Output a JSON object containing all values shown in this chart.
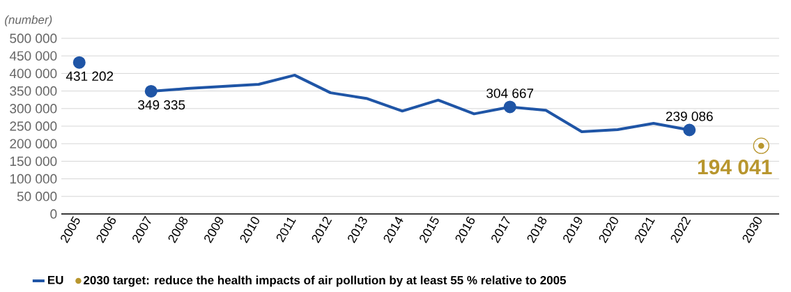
{
  "chart_data": {
    "type": "line",
    "ylabel": "(number)",
    "categories": [
      "2005",
      "2006",
      "2007",
      "2008",
      "2009",
      "2010",
      "2011",
      "2012",
      "2013",
      "2014",
      "2015",
      "2016",
      "2017",
      "2018",
      "2019",
      "2020",
      "2021",
      "2022",
      null,
      "2030"
    ],
    "series": [
      {
        "name": "EU",
        "color": "#1f55a6",
        "values": [
          431202,
          null,
          349335,
          357000,
          363000,
          369000,
          395000,
          345000,
          329000,
          293000,
          324000,
          285000,
          304667,
          295000,
          234000,
          240000,
          258000,
          239086,
          null,
          null
        ],
        "value_labels": [
          "431 202",
          null,
          "349 335",
          null,
          null,
          null,
          null,
          null,
          null,
          null,
          null,
          null,
          "304 667",
          null,
          null,
          null,
          null,
          "239 086",
          null,
          null
        ]
      },
      {
        "name": "2030 target: reduce the health impacts of air pollution by at least 55 % relative to 2005",
        "color": "#b8962e",
        "type": "scatter",
        "marker": "circle",
        "values": [
          null,
          null,
          null,
          null,
          null,
          null,
          null,
          null,
          null,
          null,
          null,
          null,
          null,
          null,
          null,
          null,
          null,
          null,
          null,
          194041
        ],
        "value_labels": [
          null,
          null,
          null,
          null,
          null,
          null,
          null,
          null,
          null,
          null,
          null,
          null,
          null,
          null,
          null,
          null,
          null,
          null,
          null,
          "194 041"
        ]
      }
    ],
    "ylim": [
      0,
      500000
    ],
    "yticks": [
      {
        "value": 0,
        "label": "0"
      },
      {
        "value": 50000,
        "label": "50 000"
      },
      {
        "value": 100000,
        "label": "100 000"
      },
      {
        "value": 150000,
        "label": "150 000"
      },
      {
        "value": 200000,
        "label": "200 000"
      },
      {
        "value": 250000,
        "label": "250 000"
      },
      {
        "value": 300000,
        "label": "300 000"
      },
      {
        "value": 350000,
        "label": "350 000"
      },
      {
        "value": 400000,
        "label": "400 000"
      },
      {
        "value": 450000,
        "label": "450 000"
      },
      {
        "value": 500000,
        "label": "500 000"
      }
    ],
    "grid": "y",
    "legend": "bottom",
    "line_style": "solid"
  }
}
